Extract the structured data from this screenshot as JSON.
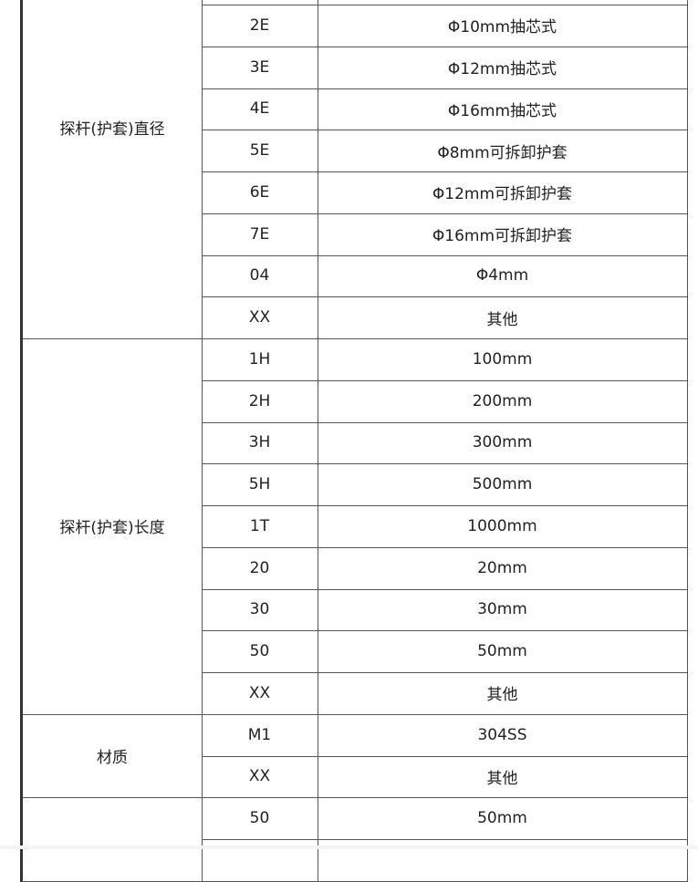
{
  "groups": [
    {
      "label": "探杆(护套)直径",
      "rows": [
        {
          "code": "",
          "desc": ""
        },
        {
          "code": "2E",
          "desc": "Φ10mm抽芯式"
        },
        {
          "code": "3E",
          "desc": "Φ12mm抽芯式"
        },
        {
          "code": "4E",
          "desc": "Φ16mm抽芯式"
        },
        {
          "code": "5E",
          "desc": "Φ8mm可拆卸护套"
        },
        {
          "code": "6E",
          "desc": "Φ12mm可拆卸护套"
        },
        {
          "code": "7E",
          "desc": "Φ16mm可拆卸护套"
        },
        {
          "code": "04",
          "desc": "Φ4mm"
        },
        {
          "code": "XX",
          "desc": "其他"
        }
      ]
    },
    {
      "label": "探杆(护套)长度",
      "rows": [
        {
          "code": "1H",
          "desc": "100mm"
        },
        {
          "code": "2H",
          "desc": "200mm"
        },
        {
          "code": "3H",
          "desc": "300mm"
        },
        {
          "code": "5H",
          "desc": "500mm"
        },
        {
          "code": "1T",
          "desc": "1000mm"
        },
        {
          "code": "20",
          "desc": "20mm"
        },
        {
          "code": "30",
          "desc": "30mm"
        },
        {
          "code": "50",
          "desc": "50mm"
        },
        {
          "code": "XX",
          "desc": "其他"
        }
      ]
    },
    {
      "label": "材质",
      "rows": [
        {
          "code": "M1",
          "desc": "304SS"
        },
        {
          "code": "XX",
          "desc": "其他"
        }
      ]
    },
    {
      "label": "",
      "rows": [
        {
          "code": "50",
          "desc": "50mm"
        },
        {
          "code": "",
          "desc": ""
        }
      ]
    }
  ]
}
